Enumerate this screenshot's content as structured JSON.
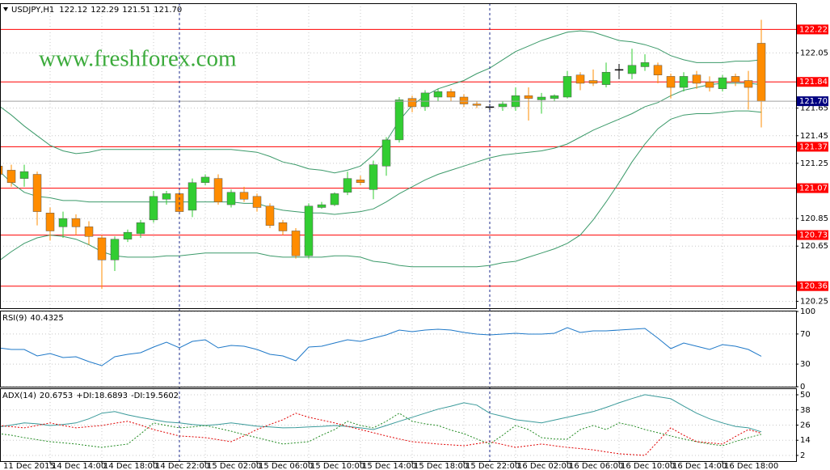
{
  "chart_data": [
    {
      "type": "candlestick",
      "title": "USDJPY,H1",
      "watermark": "www.freshforex.com",
      "categories": [
        "11 Dec 2015",
        null,
        null,
        null,
        "14 Dec 14:00",
        null,
        null,
        null,
        "14 Dec 18:00",
        null,
        null,
        null,
        "14 Dec 22:00",
        null,
        null,
        null,
        "15 Dec 02:00",
        null,
        null,
        null,
        "15 Dec 06:00",
        null,
        null,
        null,
        "15 Dec 10:00",
        null,
        null,
        null,
        "15 Dec 14:00",
        null,
        null,
        null,
        "15 Dec 18:00",
        null,
        null,
        null,
        "15 Dec 22:00",
        null,
        null,
        null,
        "16 Dec 02:00",
        null,
        null,
        null,
        "16 Dec 06:00",
        null,
        null,
        null,
        "16 Dec 10:00",
        null,
        null,
        null,
        "16 Dec 14:00",
        null,
        null,
        null,
        "16 Dec 18:00",
        null,
        null,
        null
      ],
      "open": [
        121.23,
        121.2,
        121.14,
        121.17,
        120.89,
        120.79,
        120.85,
        120.79,
        120.71,
        120.55,
        120.7,
        120.74,
        120.84,
        120.99,
        121.03,
        120.91,
        121.11,
        121.14,
        120.95,
        121.04,
        121.01,
        120.94,
        120.82,
        120.76,
        120.58,
        120.93,
        120.95,
        121.04,
        121.13,
        121.06,
        121.23,
        121.42,
        121.72,
        121.66,
        121.73,
        121.77,
        121.73,
        121.68,
        121.66,
        121.66,
        121.66,
        121.74,
        121.71,
        121.72,
        121.73,
        121.89,
        121.85,
        121.82,
        121.93,
        121.9,
        121.95,
        121.96,
        121.88,
        121.8,
        121.89,
        121.84,
        121.79,
        121.88,
        121.85,
        122.12
      ],
      "high": [
        121.26,
        121.24,
        121.24,
        121.19,
        120.93,
        120.9,
        120.88,
        120.83,
        120.73,
        120.72,
        120.77,
        120.84,
        121.05,
        121.05,
        121.06,
        121.14,
        121.17,
        121.17,
        121.06,
        121.08,
        121.03,
        120.96,
        120.84,
        120.78,
        120.96,
        120.97,
        121.04,
        121.19,
        121.16,
        121.27,
        121.44,
        121.73,
        121.74,
        121.78,
        121.79,
        121.79,
        121.75,
        121.7,
        121.68,
        121.7,
        121.8,
        121.8,
        121.76,
        121.75,
        121.92,
        121.91,
        121.93,
        121.98,
        121.97,
        122.08,
        122.04,
        121.98,
        121.9,
        121.91,
        121.92,
        121.88,
        121.89,
        121.9,
        121.92,
        122.29
      ],
      "low": [
        121.13,
        121.08,
        121.08,
        120.8,
        120.69,
        120.71,
        120.73,
        120.66,
        120.34,
        120.47,
        120.68,
        120.71,
        120.82,
        120.95,
        120.89,
        120.86,
        121.09,
        120.95,
        120.93,
        120.97,
        120.9,
        120.78,
        120.73,
        120.56,
        120.56,
        120.92,
        120.94,
        121.02,
        121.09,
        120.99,
        121.16,
        121.4,
        121.62,
        121.63,
        121.7,
        121.7,
        121.66,
        121.65,
        121.62,
        121.63,
        121.63,
        121.56,
        121.61,
        121.7,
        121.72,
        121.78,
        121.81,
        121.8,
        121.86,
        121.86,
        121.92,
        121.83,
        121.72,
        121.77,
        121.79,
        121.77,
        121.77,
        121.81,
        121.64,
        121.51
      ],
      "close": [
        121.17,
        121.11,
        121.19,
        120.9,
        120.76,
        120.85,
        120.79,
        120.72,
        120.55,
        120.7,
        120.75,
        120.82,
        121.01,
        121.03,
        120.9,
        121.11,
        121.15,
        120.97,
        121.04,
        120.99,
        120.93,
        120.8,
        120.76,
        120.58,
        120.94,
        120.95,
        121.03,
        121.14,
        121.11,
        121.24,
        121.42,
        121.71,
        121.66,
        121.76,
        121.77,
        121.73,
        121.68,
        121.67,
        121.66,
        121.68,
        121.74,
        121.72,
        121.73,
        121.74,
        121.88,
        121.83,
        121.83,
        121.91,
        121.93,
        121.96,
        121.98,
        121.89,
        121.8,
        121.88,
        121.83,
        121.8,
        121.87,
        121.84,
        121.8,
        121.7
      ],
      "up_color": "#32cd32",
      "down_color": "#ff8c00",
      "flat_color": "#000000",
      "series": [
        {
          "color": "#3c9a6a",
          "values": [
            121.67,
            121.6,
            121.52,
            121.45,
            121.38,
            121.34,
            121.32,
            121.33,
            121.35,
            121.35,
            121.35,
            121.35,
            121.35,
            121.35,
            121.35,
            121.35,
            121.35,
            121.35,
            121.35,
            121.34,
            121.33,
            121.3,
            121.26,
            121.24,
            121.21,
            121.2,
            121.18,
            121.2,
            121.23,
            121.31,
            121.41,
            121.56,
            121.67,
            121.74,
            121.79,
            121.82,
            121.85,
            121.9,
            121.94,
            122.0,
            122.06,
            122.1,
            122.14,
            122.17,
            122.2,
            122.21,
            122.2,
            122.17,
            122.14,
            122.13,
            122.11,
            122.08,
            122.03,
            122.0,
            121.98,
            121.98,
            121.98,
            121.99,
            121.99,
            122.0
          ]
        },
        {
          "color": "#3c9a6a",
          "values": [
            121.2,
            121.11,
            121.04,
            121.01,
            121.0,
            120.98,
            120.98,
            120.97,
            120.97,
            120.97,
            120.97,
            120.97,
            120.97,
            120.97,
            120.97,
            120.97,
            120.97,
            120.97,
            120.97,
            120.96,
            120.96,
            120.93,
            120.91,
            120.9,
            120.89,
            120.89,
            120.88,
            120.89,
            120.9,
            120.92,
            120.97,
            121.03,
            121.08,
            121.13,
            121.17,
            121.2,
            121.23,
            121.26,
            121.29,
            121.31,
            121.32,
            121.33,
            121.34,
            121.36,
            121.39,
            121.44,
            121.49,
            121.53,
            121.57,
            121.61,
            121.66,
            121.69,
            121.74,
            121.78,
            121.8,
            121.82,
            121.83,
            121.83,
            121.83,
            121.82
          ]
        },
        {
          "color": "#3c9a6a",
          "values": [
            120.54,
            120.61,
            120.67,
            120.71,
            120.73,
            120.72,
            120.7,
            120.66,
            120.61,
            120.58,
            120.57,
            120.57,
            120.57,
            120.58,
            120.58,
            120.59,
            120.6,
            120.6,
            120.6,
            120.6,
            120.6,
            120.58,
            120.57,
            120.57,
            120.57,
            120.57,
            120.58,
            120.58,
            120.57,
            120.54,
            120.53,
            120.51,
            120.5,
            120.5,
            120.5,
            120.5,
            120.5,
            120.5,
            120.51,
            120.53,
            120.54,
            120.57,
            120.6,
            120.63,
            120.67,
            120.73,
            120.84,
            120.97,
            121.11,
            121.26,
            121.39,
            121.5,
            121.57,
            121.6,
            121.61,
            121.61,
            121.62,
            121.63,
            121.63,
            121.62
          ]
        }
      ],
      "levels": [
        122.22,
        121.84,
        121.37,
        121.07,
        120.73,
        120.36
      ],
      "level_color": "#ff0000",
      "bid": {
        "value": 121.7,
        "label": "121.70"
      },
      "bid_color": "#000080",
      "ylim": [
        120.2,
        122.41
      ],
      "yticks": [
        122.05,
        121.65,
        121.45,
        121.25,
        120.85,
        120.65,
        120.25
      ],
      "grid": true
    },
    {
      "type": "line",
      "title": "RSI(9)",
      "color": "#1e78c8",
      "values": [
        51.6,
        49.5,
        49.5,
        40.9,
        44.1,
        38.7,
        39.8,
        33.3,
        28.0,
        39.8,
        43.0,
        45.2,
        52.7,
        59.1,
        51.6,
        60.2,
        62.4,
        51.6,
        54.8,
        53.8,
        49.5,
        43.0,
        40.9,
        34.4,
        52.7,
        53.8,
        58.1,
        62.4,
        60.2,
        64.5,
        68.8,
        75.3,
        73.1,
        75.3,
        76.3,
        75.3,
        72.0,
        69.9,
        68.8,
        69.9,
        71.0,
        69.9,
        69.9,
        71.0,
        78.5,
        72.0,
        74.2,
        74.2,
        75.3,
        76.3,
        77.4,
        64.5,
        50.5,
        58.1,
        53.8,
        49.5,
        55.9,
        53.8,
        49.5,
        40.4325
      ],
      "ylim": [
        0,
        100
      ],
      "yticks": [
        0,
        30,
        70,
        100
      ],
      "grid": true
    },
    {
      "type": "line",
      "series": [
        {
          "name": "ADX(14)",
          "color": "#3a9a9a",
          "style": "solid",
          "values": [
            24.5,
            26,
            27.7,
            27,
            25.7,
            26.5,
            27.7,
            31,
            35.4,
            36.7,
            34.1,
            32,
            30.2,
            28.5,
            27.7,
            26.5,
            25.7,
            26.5,
            27.7,
            26.5,
            25.1,
            24.5,
            23.8,
            24,
            24.5,
            25,
            25.7,
            25,
            23.8,
            22.5,
            25.7,
            29,
            32.2,
            35.4,
            38.6,
            41,
            43.7,
            41.8,
            35.4,
            33,
            30.2,
            29,
            27.7,
            30,
            32.2,
            34.5,
            36.7,
            40,
            43.7,
            47,
            50.1,
            48.5,
            46.9,
            41,
            35.4,
            31,
            27.7,
            25,
            23.8,
            20.6753
          ]
        },
        {
          "name": "+DI:",
          "color": "#228b22",
          "style": "dotted",
          "values": [
            19.3,
            18,
            16.1,
            14.5,
            12.9,
            12,
            11,
            9.7,
            8.4,
            9.7,
            11,
            19,
            27.7,
            25.7,
            23.8,
            24.5,
            25.7,
            23.5,
            21.2,
            18.5,
            16.1,
            13.5,
            11,
            12,
            12.9,
            18,
            22.5,
            29,
            25.7,
            23.8,
            29,
            35.4,
            29,
            27,
            25.7,
            22,
            19.3,
            15,
            11,
            18,
            25.7,
            22.5,
            16.1,
            15,
            14.8,
            22.5,
            25.7,
            22.5,
            27.7,
            25.7,
            22.5,
            20,
            17.4,
            15,
            12.9,
            11,
            9.7,
            13,
            16.1,
            18.6893
          ]
        },
        {
          "name": "-DI:",
          "color": "#e00000",
          "style": "dotted",
          "values": [
            25.7,
            24.8,
            23.8,
            25.7,
            27.7,
            25.7,
            23.8,
            24.8,
            25.7,
            27.5,
            29,
            26,
            22.5,
            20,
            17.4,
            16.8,
            16.1,
            14.5,
            12.9,
            17.5,
            22.5,
            26.5,
            30.2,
            35.4,
            32.2,
            30,
            27.7,
            25,
            22.5,
            20,
            17.4,
            15,
            12.9,
            12,
            11,
            10.4,
            9.7,
            11.3,
            12.9,
            10.6,
            8.4,
            9.7,
            11,
            9.7,
            8.4,
            7.4,
            6.4,
            4.8,
            3.3,
            2.6,
            2,
            13,
            23.8,
            18,
            12.9,
            12,
            11,
            17,
            22.5,
            19.5602
          ]
        }
      ],
      "ylim": [
        -2.5,
        54.5
      ],
      "yticks": [
        2,
        14,
        26,
        38,
        50
      ],
      "grid": true
    }
  ]
}
